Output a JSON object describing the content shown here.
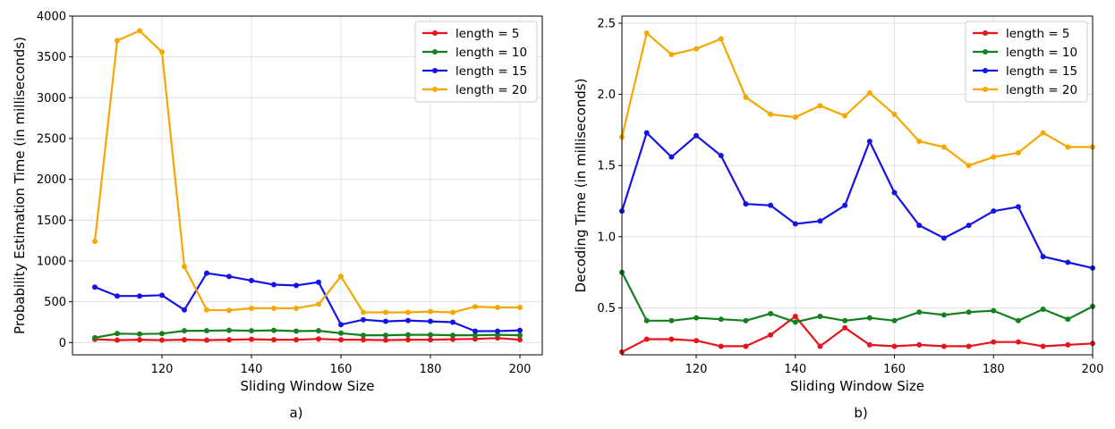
{
  "chart_data": [
    {
      "type": "line",
      "panel": "a)",
      "xlabel": "Sliding Window Size",
      "ylabel": "Probability Estimation Time (in milliseconds)",
      "xlim": [
        100,
        205
      ],
      "ylim": [
        -150,
        4000
      ],
      "xticks": [
        120,
        140,
        160,
        180,
        200
      ],
      "yticks": [
        0,
        500,
        1000,
        1500,
        2000,
        2500,
        3000,
        3500,
        4000
      ],
      "grid": true,
      "legend_position": "top-right",
      "x": [
        105,
        110,
        115,
        120,
        125,
        130,
        135,
        140,
        145,
        150,
        155,
        160,
        165,
        170,
        175,
        180,
        185,
        190,
        195,
        200
      ],
      "series": [
        {
          "name": "length = 5",
          "color": "#e8141c",
          "values": [
            40,
            30,
            35,
            30,
            35,
            30,
            35,
            40,
            35,
            35,
            45,
            35,
            35,
            30,
            35,
            35,
            40,
            45,
            55,
            35
          ]
        },
        {
          "name": "length = 10",
          "color": "#14801e",
          "values": [
            60,
            110,
            105,
            110,
            145,
            145,
            150,
            145,
            150,
            140,
            145,
            115,
            90,
            90,
            95,
            95,
            90,
            90,
            95,
            90
          ]
        },
        {
          "name": "length = 15",
          "color": "#1414e6",
          "values": [
            680,
            570,
            570,
            580,
            400,
            850,
            810,
            760,
            710,
            700,
            740,
            220,
            280,
            260,
            270,
            260,
            250,
            140,
            140,
            150
          ]
        },
        {
          "name": "length = 20",
          "color": "#f5a800",
          "values": [
            1240,
            3700,
            3820,
            3560,
            930,
            400,
            395,
            420,
            420,
            420,
            470,
            810,
            370,
            370,
            370,
            380,
            370,
            440,
            430,
            430
          ]
        }
      ]
    },
    {
      "type": "line",
      "panel": "b)",
      "xlabel": "Sliding Window Size",
      "ylabel": "Decoding Time (in milliseconds)",
      "xlim": [
        105,
        200
      ],
      "ylim": [
        0.17,
        2.55
      ],
      "xticks": [
        120,
        140,
        160,
        180,
        200
      ],
      "yticks": [
        0.5,
        1.0,
        1.5,
        2.0,
        2.5
      ],
      "ytick_labels": [
        "0.5",
        "1.0",
        "1.5",
        "2.0",
        "2.5"
      ],
      "grid": true,
      "legend_position": "top-right",
      "x": [
        105,
        110,
        115,
        120,
        125,
        130,
        135,
        140,
        145,
        150,
        155,
        160,
        165,
        170,
        175,
        180,
        185,
        190,
        195,
        200
      ],
      "series": [
        {
          "name": "length = 5",
          "color": "#e8141c",
          "values": [
            0.19,
            0.28,
            0.28,
            0.27,
            0.23,
            0.23,
            0.31,
            0.44,
            0.23,
            0.36,
            0.24,
            0.23,
            0.24,
            0.23,
            0.23,
            0.26,
            0.26,
            0.23,
            0.24,
            0.25
          ]
        },
        {
          "name": "length = 10",
          "color": "#14801e",
          "values": [
            0.75,
            0.41,
            0.41,
            0.43,
            0.42,
            0.41,
            0.46,
            0.4,
            0.44,
            0.41,
            0.43,
            0.41,
            0.47,
            0.45,
            0.47,
            0.48,
            0.41,
            0.49,
            0.42,
            0.51
          ]
        },
        {
          "name": "length = 15",
          "color": "#1414e6",
          "values": [
            1.18,
            1.73,
            1.56,
            1.71,
            1.57,
            1.23,
            1.22,
            1.09,
            1.11,
            1.22,
            1.67,
            1.31,
            1.08,
            0.99,
            1.08,
            1.18,
            1.21,
            0.86,
            0.82,
            0.78
          ]
        },
        {
          "name": "length = 20",
          "color": "#f5a800",
          "values": [
            1.7,
            2.43,
            2.28,
            2.32,
            2.39,
            1.98,
            1.86,
            1.84,
            1.92,
            1.85,
            2.01,
            1.86,
            1.67,
            1.63,
            1.5,
            1.56,
            1.59,
            1.73,
            1.63,
            1.63
          ]
        }
      ]
    }
  ]
}
